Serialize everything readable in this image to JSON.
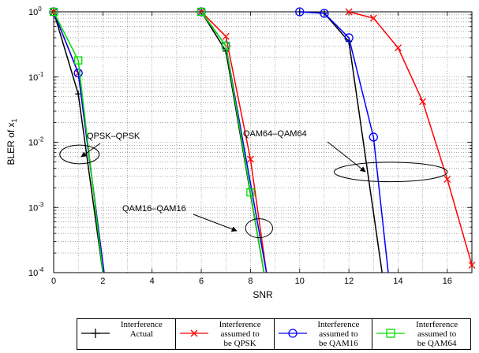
{
  "chart_data": {
    "type": "line",
    "xlabel": "SNR",
    "ylabel_main": "BLER of x",
    "ylabel_sub": "1",
    "xlim": [
      0,
      17
    ],
    "ylim": [
      0.0001,
      1
    ],
    "yscale": "log",
    "grid": true,
    "x_ticks": [
      "0",
      "2",
      "4",
      "6",
      "8",
      "10",
      "12",
      "14",
      "16"
    ],
    "y_ticks": [
      {
        "base": "10",
        "exp": "0"
      },
      {
        "base": "10",
        "exp": "-1"
      },
      {
        "base": "10",
        "exp": "-2"
      },
      {
        "base": "10",
        "exp": "-3"
      },
      {
        "base": "10",
        "exp": "-4"
      }
    ],
    "series": [
      {
        "name": "Interference Actual",
        "color": "#000000",
        "marker": "plus",
        "groups": [
          {
            "x": [
              0,
              1,
              2
            ],
            "y": [
              1,
              0.055,
              0.0001
            ]
          },
          {
            "x": [
              6,
              7,
              8.55
            ],
            "y": [
              1,
              0.25,
              0.0001
            ]
          },
          {
            "x": [
              10,
              11,
              12,
              13.35
            ],
            "y": [
              1,
              0.95,
              0.35,
              0.0001
            ]
          }
        ]
      },
      {
        "name": "Interference assumed to be QPSK",
        "color": "#ff0000",
        "marker": "x",
        "groups": [
          {
            "x": [
              0,
              1,
              2.05
            ],
            "y": [
              1,
              0.115,
              0.0001
            ]
          },
          {
            "x": [
              6,
              7,
              8,
              8.65
            ],
            "y": [
              1,
              0.42,
              0.0055,
              0.0001
            ]
          },
          {
            "x": [
              12,
              13,
              14,
              15,
              16,
              17
            ],
            "y": [
              1,
              0.8,
              0.28,
              0.042,
              0.0027,
              0.00013
            ]
          }
        ]
      },
      {
        "name": "Interference assumed to be QAM16",
        "color": "#0000ff",
        "marker": "circle",
        "groups": [
          {
            "x": [
              0,
              1,
              2.05
            ],
            "y": [
              1,
              0.115,
              0.0001
            ]
          },
          {
            "x": [
              6,
              7,
              8.65
            ],
            "y": [
              1,
              0.3,
              0.0001
            ]
          },
          {
            "x": [
              10,
              11,
              12,
              13,
              13.6
            ],
            "y": [
              1,
              0.95,
              0.4,
              0.012,
              0.0001
            ]
          }
        ]
      },
      {
        "name": "Interference assumed to be QAM64",
        "color": "#00dd00",
        "marker": "square",
        "groups": [
          {
            "x": [
              0,
              1,
              2
            ],
            "y": [
              1,
              0.18,
              0.0001
            ]
          },
          {
            "x": [
              6,
              7,
              8,
              8.55
            ],
            "y": [
              1,
              0.3,
              0.0017,
              0.0001
            ]
          }
        ]
      }
    ],
    "annotations": [
      {
        "text": "QPSK–QPSK",
        "ellipse": {
          "cx": 1.05,
          "cy": 0.0065,
          "rx": 0.8,
          "ry": 0.0016
        }
      },
      {
        "text": "QAM16–QAM16",
        "ellipse": {
          "cx": 8.35,
          "cy": 0.00048,
          "rx": 0.55,
          "ry": 0.00012
        }
      },
      {
        "text": "QAM64–QAM64",
        "ellipse": {
          "cx": 13.7,
          "cy": 0.0035,
          "rx": 2.3,
          "ry": 0.0009
        }
      }
    ]
  },
  "legend": {
    "items": [
      {
        "label": "Interference\nActual"
      },
      {
        "label": "Interference\nassumed to\nbe QPSK"
      },
      {
        "label": "Interference\nassumed to\nbe QAM16"
      },
      {
        "label": "Interference\nassumed to\nbe QAM64"
      }
    ]
  }
}
